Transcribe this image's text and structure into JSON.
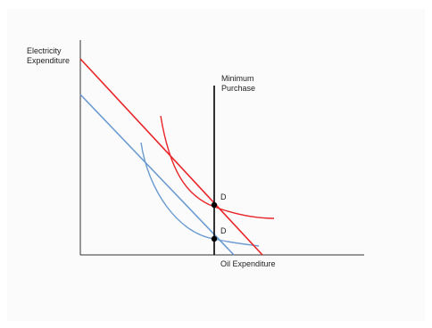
{
  "y_axis_label_line1": "Electricity",
  "y_axis_label_line2": "Expenditure",
  "x_axis_label": "Oil Expenditure",
  "constraint_label_line1": "Minimum",
  "constraint_label_line2": "Purchase",
  "point_upper_label": "D",
  "point_lower_label": "D",
  "colors": {
    "original": "#6b9bd1",
    "new": "#e8262a",
    "constraint": "#000000",
    "axes": "#333333"
  }
}
